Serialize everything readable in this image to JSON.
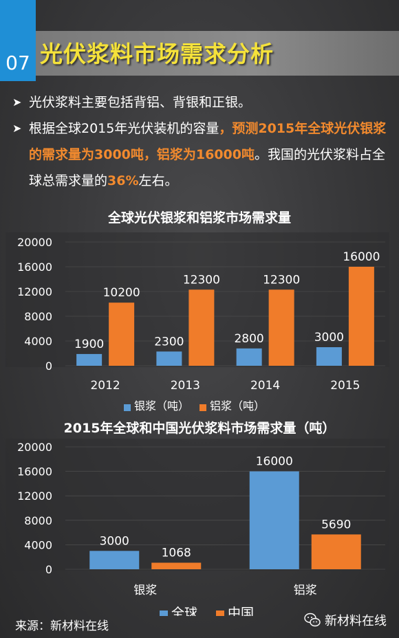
{
  "header": {
    "number": "07",
    "title": "光伏浆料市场需求分析"
  },
  "bullets": [
    {
      "parts": [
        {
          "text": "光伏浆料主要包括背铝、背银和正银。",
          "hl": false
        }
      ]
    },
    {
      "parts": [
        {
          "text": "根据全球2015年光伏装机的容量",
          "hl": false
        },
        {
          "text": "，预测2015年全球光伏银浆的需求量为3000吨，铝浆为16000吨",
          "hl": true
        },
        {
          "text": "。我国的光伏浆料占全球总需求量的",
          "hl": false
        },
        {
          "text": "36%",
          "hl": true
        },
        {
          "text": "左右。",
          "hl": false
        }
      ]
    }
  ],
  "colors": {
    "blue": "#5b9bd5",
    "orange": "#f07c2a",
    "accent": "#1f8fd6",
    "title": "#f5e23a"
  },
  "chart_data": [
    {
      "type": "bar",
      "title": "全球光伏银浆和铝浆市场需求量",
      "categories": [
        "2012",
        "2013",
        "2014",
        "2015"
      ],
      "series": [
        {
          "name": "银浆（吨）",
          "values": [
            1900,
            2300,
            2800,
            3000
          ]
        },
        {
          "name": "铝浆（吨）",
          "values": [
            10200,
            12300,
            12300,
            16000
          ]
        }
      ],
      "ylim": [
        0,
        20000
      ],
      "yticks": [
        "20000",
        "16000",
        "12000",
        "8000",
        "4000",
        "0"
      ],
      "legend": "bottom"
    },
    {
      "type": "bar",
      "title": "2015年全球和中国光伏浆料市场需求量（吨）",
      "categories": [
        "银浆",
        "铝浆"
      ],
      "series": [
        {
          "name": "全球",
          "values": [
            3000,
            16000
          ]
        },
        {
          "name": "中国",
          "values": [
            1068,
            5690
          ]
        }
      ],
      "ylim": [
        0,
        20000
      ],
      "yticks": [
        "20000",
        "16000",
        "12000",
        "8000",
        "4000",
        "0"
      ],
      "legend": "bottom"
    }
  ],
  "footer": {
    "source": "来源：新材料在线",
    "brand": "新材料在线"
  }
}
